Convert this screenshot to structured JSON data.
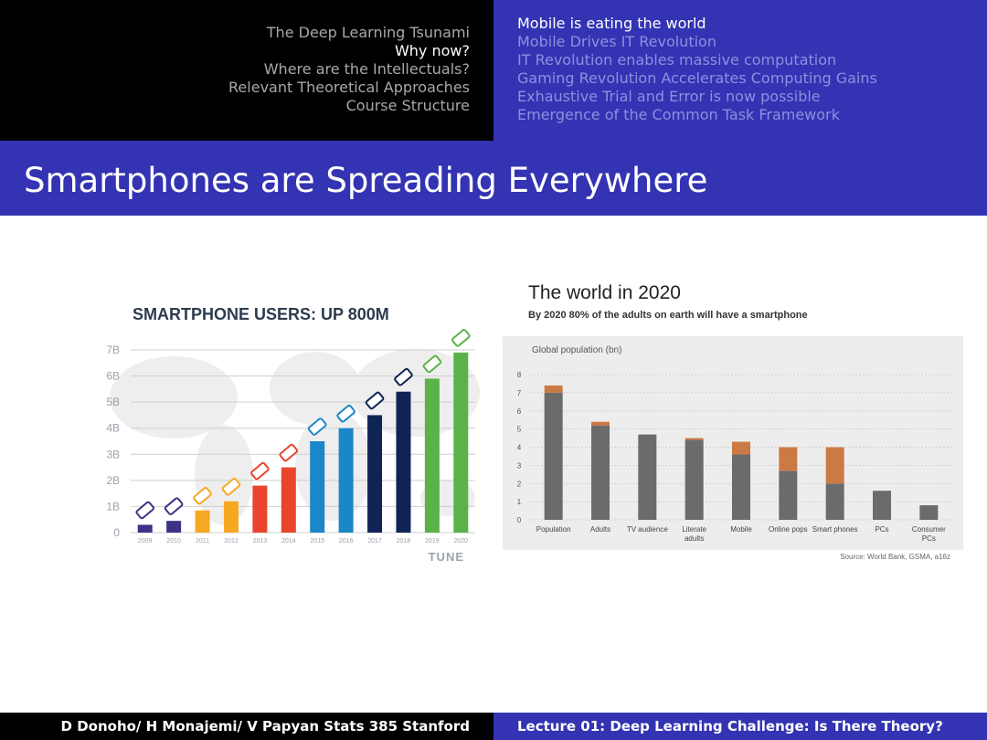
{
  "nav": {
    "left": [
      "The Deep Learning Tsunami",
      "Why now?",
      "Where are the Intellectuals?",
      "Relevant Theoretical Approaches",
      "Course Structure"
    ],
    "left_active": 1,
    "right": [
      "Mobile is eating the world",
      "Mobile Drives IT Revolution",
      "IT Revolution enables massive computation",
      "Gaming Revolution Accelerates Computing Gains",
      "Exhaustive Trial and Error is now possible",
      "Emergence of the Common Task Framework"
    ],
    "right_active": 0
  },
  "slide": {
    "title": "Smartphones are Spreading Everywhere"
  },
  "footer": {
    "left": "D Donoho/ H Monajemi/ V Papyan Stats 385 Stanford",
    "right": "Lecture 01: Deep Learning Challenge:  Is There Theory?"
  },
  "colors": {
    "beamer_blue": "#3333b3",
    "gray_bar": "#6b6b6b",
    "orange_bar": "#cc7a44"
  },
  "chart_data": [
    {
      "type": "bar",
      "title": "SMARTPHONE USERS: UP 800M",
      "categories": [
        "2009",
        "2010",
        "2011",
        "2012",
        "2013",
        "2014",
        "2015",
        "2016",
        "2017",
        "2018",
        "2019",
        "2020"
      ],
      "values": [
        0.3,
        0.45,
        0.85,
        1.2,
        1.8,
        2.5,
        3.5,
        4.0,
        4.5,
        5.4,
        5.9,
        6.9
      ],
      "y_tick_labels": [
        "0",
        "1B",
        "2B",
        "3B",
        "4B",
        "5B",
        "6B",
        "7B"
      ],
      "ylim": [
        0,
        7
      ],
      "units": "billions",
      "bar_colors": [
        "#3b3486",
        "#3b3486",
        "#f7a823",
        "#f7a823",
        "#e8452c",
        "#e8452c",
        "#1b86c8",
        "#1b86c8",
        "#102357",
        "#102357",
        "#5bb248",
        "#5bb248"
      ],
      "brand": "TUNE",
      "grid": true
    },
    {
      "type": "bar",
      "title": "The world in 2020",
      "subtitle": "By 2020 80% of the adults on earth will have a smartphone",
      "ylabel": "Global population (bn)",
      "categories": [
        "Population",
        "Adults",
        "TV audience",
        "Literate adults",
        "Mobile",
        "Online pops",
        "Smart phones",
        "PCs",
        "Consumer PCs"
      ],
      "series": [
        {
          "values": [
            7.0,
            5.2,
            4.7,
            4.4,
            3.6,
            2.7,
            2.0,
            1.6,
            0.8
          ]
        },
        {
          "values": [
            0.4,
            0.2,
            0,
            0.1,
            0.7,
            1.3,
            2.0,
            0,
            0
          ]
        }
      ],
      "y_ticks": [
        0,
        1,
        2,
        3,
        4,
        5,
        6,
        7,
        8
      ],
      "ylim": [
        0,
        8
      ],
      "stacked": true,
      "source": "Source: World Bank, GSMA, a16z",
      "grid": true
    }
  ]
}
